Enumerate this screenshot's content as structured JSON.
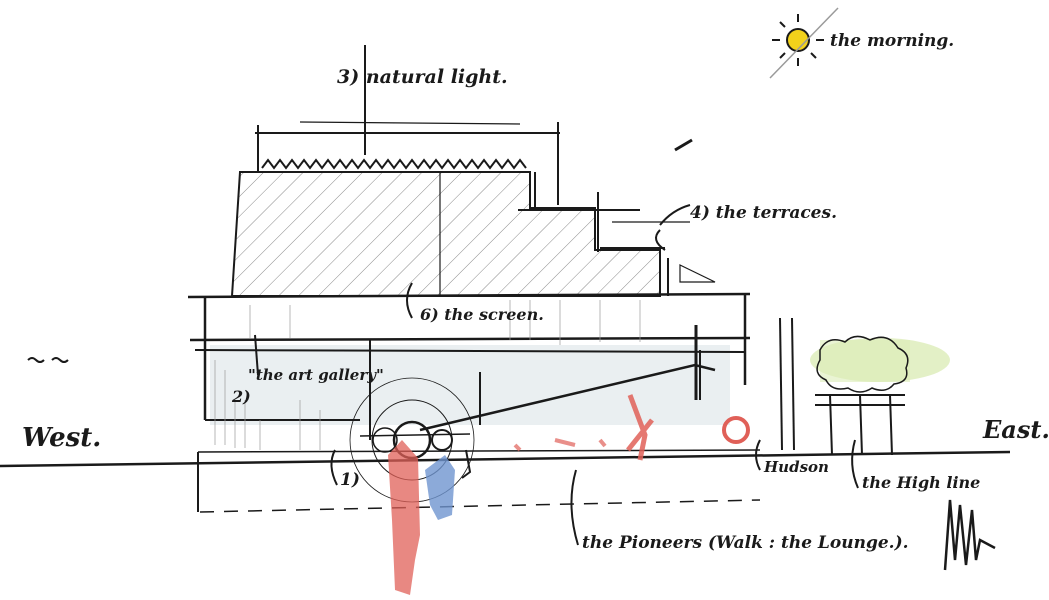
{
  "annotations": {
    "west": "West.",
    "east": "East.",
    "morning": "the morning.",
    "natural_light": "3) natural light.",
    "terraces": "4) the terraces.",
    "screen": "6) the screen.",
    "art_gallery_num": "2)",
    "art_gallery": "\"the art gallery\"",
    "item_one": "1)",
    "hudson": "Hudson",
    "high_line": "the High line",
    "pioneers": "the Pioneers (Walk : the Lounge.)."
  },
  "colors": {
    "ink": "#1a1a1a",
    "sun": "#f2d21b",
    "red": "#e06058",
    "blue": "#6f95cf",
    "green": "#dcecb8",
    "hatch": "#8a8a8a",
    "wash": "#d9e1e6"
  },
  "icons": {
    "sun": "sun-icon",
    "signature": "signature-scribble",
    "trees": "tree-canopy"
  }
}
